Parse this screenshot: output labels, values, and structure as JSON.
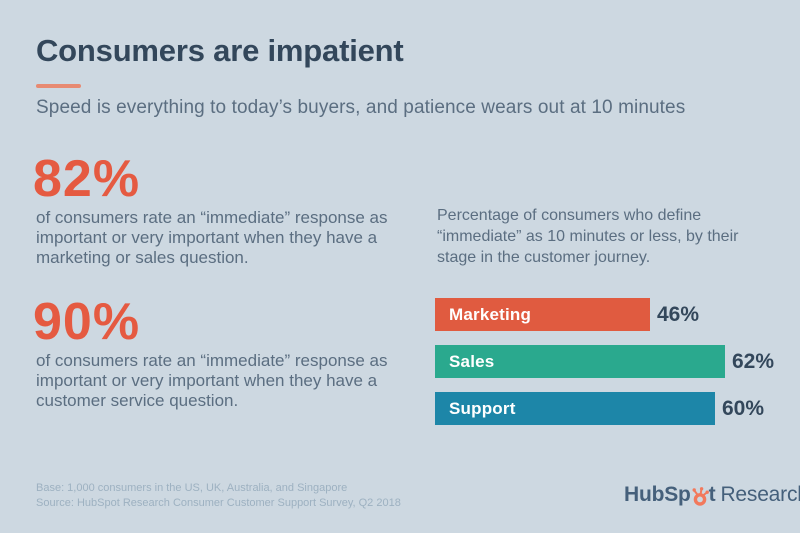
{
  "header": {
    "title": "Consumers are impatient",
    "subtitle": "Speed is everything to today’s buyers, and patience wears out at 10 minutes"
  },
  "stats": [
    {
      "value": "82%",
      "description": "of consumers rate an “immediate” response as important or very important when they have a marketing or sales question."
    },
    {
      "value": "90%",
      "description": "of consumers rate an “immediate” response as important or very important when they have a customer service question."
    }
  ],
  "chart_data": {
    "type": "bar",
    "orientation": "horizontal",
    "title": "Percentage of consumers who define “immediate” as 10 minutes or less, by their stage in the customer journey.",
    "categories": [
      "Marketing",
      "Sales",
      "Support"
    ],
    "values": [
      46,
      62,
      60
    ],
    "value_labels": [
      "46%",
      "62%",
      "60%"
    ],
    "bar_colors": [
      "#e05b40",
      "#2aa98e",
      "#1d86a8"
    ],
    "xlim": [
      0,
      100
    ],
    "grid": false,
    "value_label_position": "end-of-bar"
  },
  "footer": {
    "base": "Base: 1,000 consumers in the US, UK, Australia, and Singapore",
    "source": "Source: HubSpot Research Consumer Customer Support Survey, Q2 2018"
  },
  "logo": {
    "wordmark_part1": "HubSp",
    "wordmark_part2": "t",
    "research_label": "Research",
    "sprocket_icon": "hubspot-sprocket",
    "sprocket_color": "#f2795c"
  },
  "colors": {
    "background": "#cdd8e1",
    "title_text": "#33475b",
    "body_text": "#5b6e81",
    "accent_orange": "#e55a41",
    "title_rule": "#e78a72",
    "bar_value_text": "#33475b",
    "footer_text": "#9db1c1",
    "logo_text": "#45607b"
  }
}
